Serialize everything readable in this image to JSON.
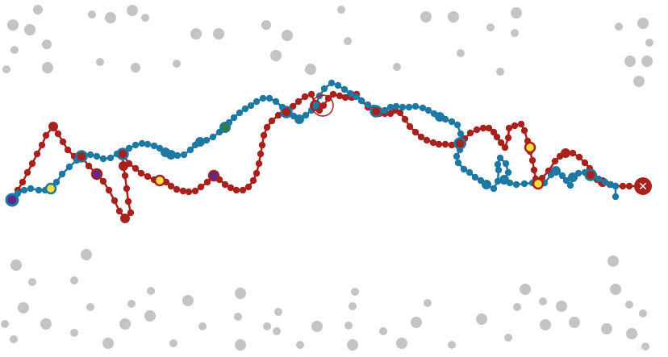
{
  "game": {
    "colors": {
      "obstacle": "#c4c4c4",
      "red_path": "#a8211d",
      "blue_path": "#1e78a4",
      "marker_yellow": "#f2df3e",
      "marker_purple": "#5b2a8c",
      "marker_green": "#2f7d44",
      "goal": "#a8211d",
      "background": "#ffffff"
    },
    "start_marker": "start-node",
    "goal_marker": "close-icon",
    "goal_glyph": "✕",
    "obstacle_count": 84
  }
}
